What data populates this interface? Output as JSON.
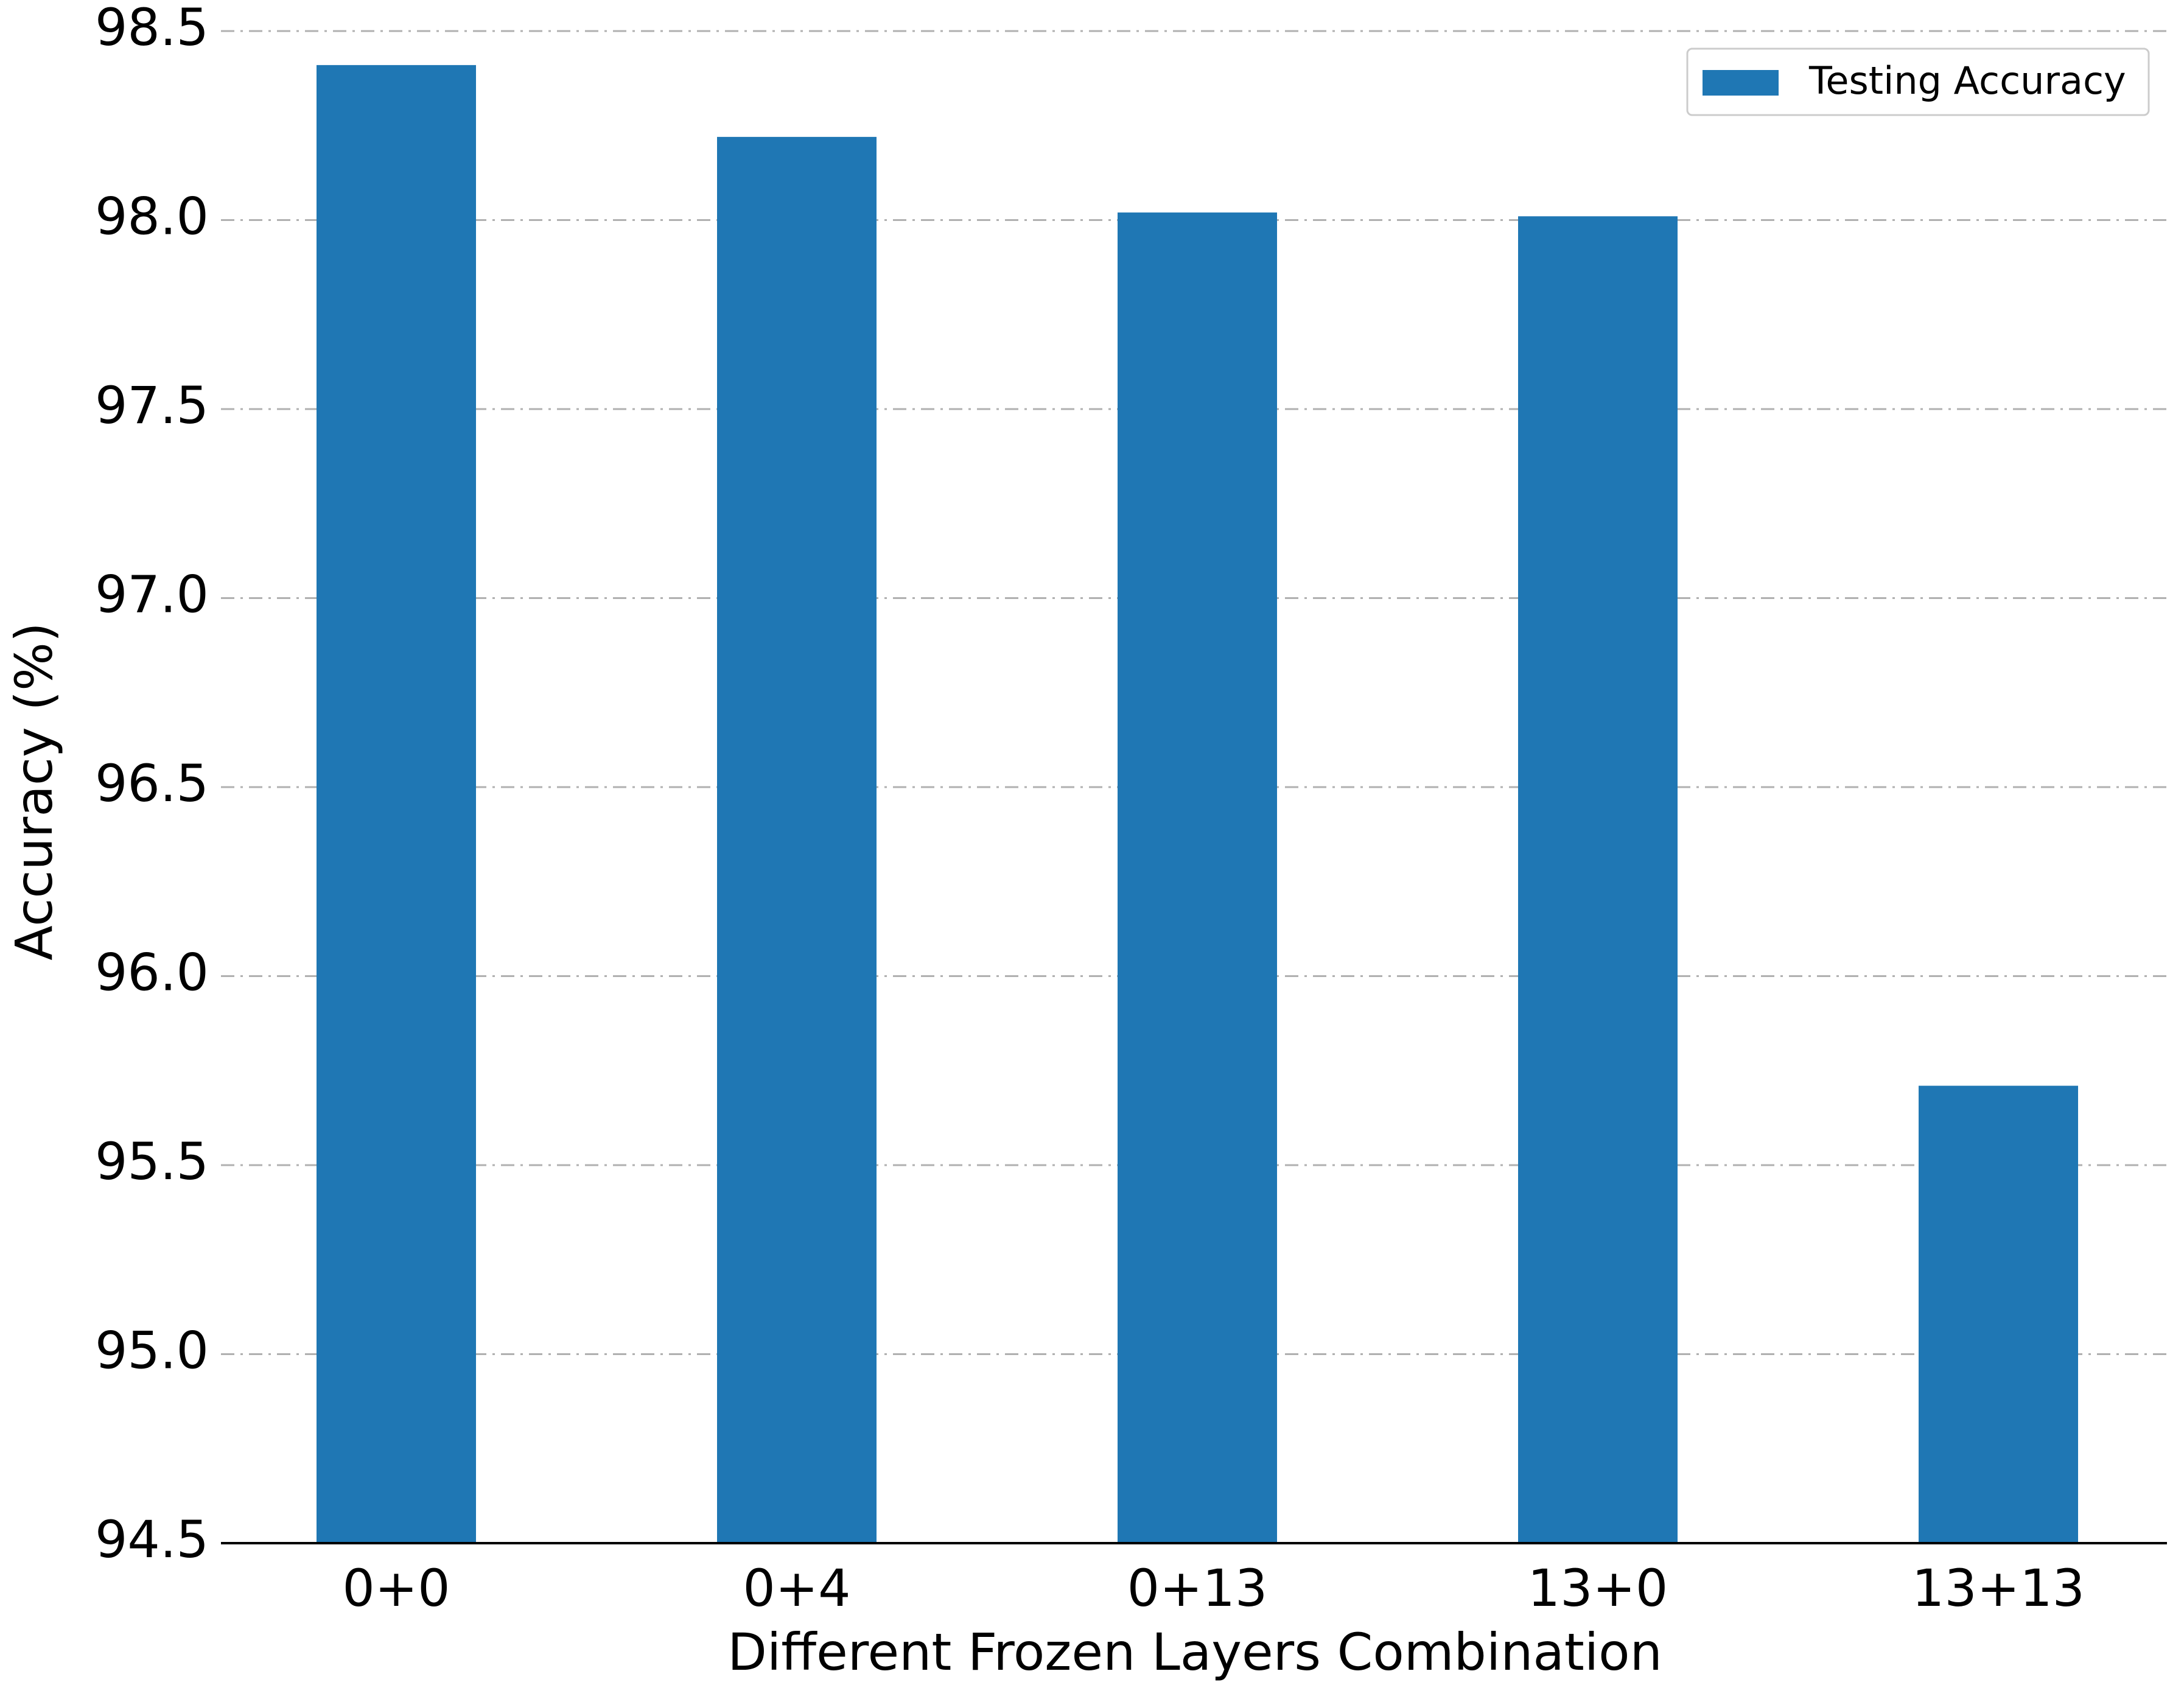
{
  "chart_data": {
    "type": "bar",
    "xlabel": "Different Frozen Layers Combination",
    "ylabel": "Accuracy (%)",
    "categories": [
      "0+0",
      "0+4",
      "0+13",
      "13+0",
      "13+13"
    ],
    "series": [
      {
        "name": "Testing Accuracy",
        "color": "#1f77b4",
        "values": [
          98.41,
          98.22,
          98.02,
          98.01,
          95.71
        ]
      }
    ],
    "ylim": [
      94.5,
      98.5
    ],
    "yticks": [
      {
        "value": 94.5,
        "label": "94.5"
      },
      {
        "value": 95.0,
        "label": "95.0"
      },
      {
        "value": 95.5,
        "label": "95.5"
      },
      {
        "value": 96.0,
        "label": "96.0"
      },
      {
        "value": 96.5,
        "label": "96.5"
      },
      {
        "value": 97.0,
        "label": "97.0"
      },
      {
        "value": 97.5,
        "label": "97.5"
      },
      {
        "value": 98.0,
        "label": "98.0"
      },
      {
        "value": 98.5,
        "label": "98.5"
      }
    ],
    "grid": true,
    "legend": "upper right"
  }
}
